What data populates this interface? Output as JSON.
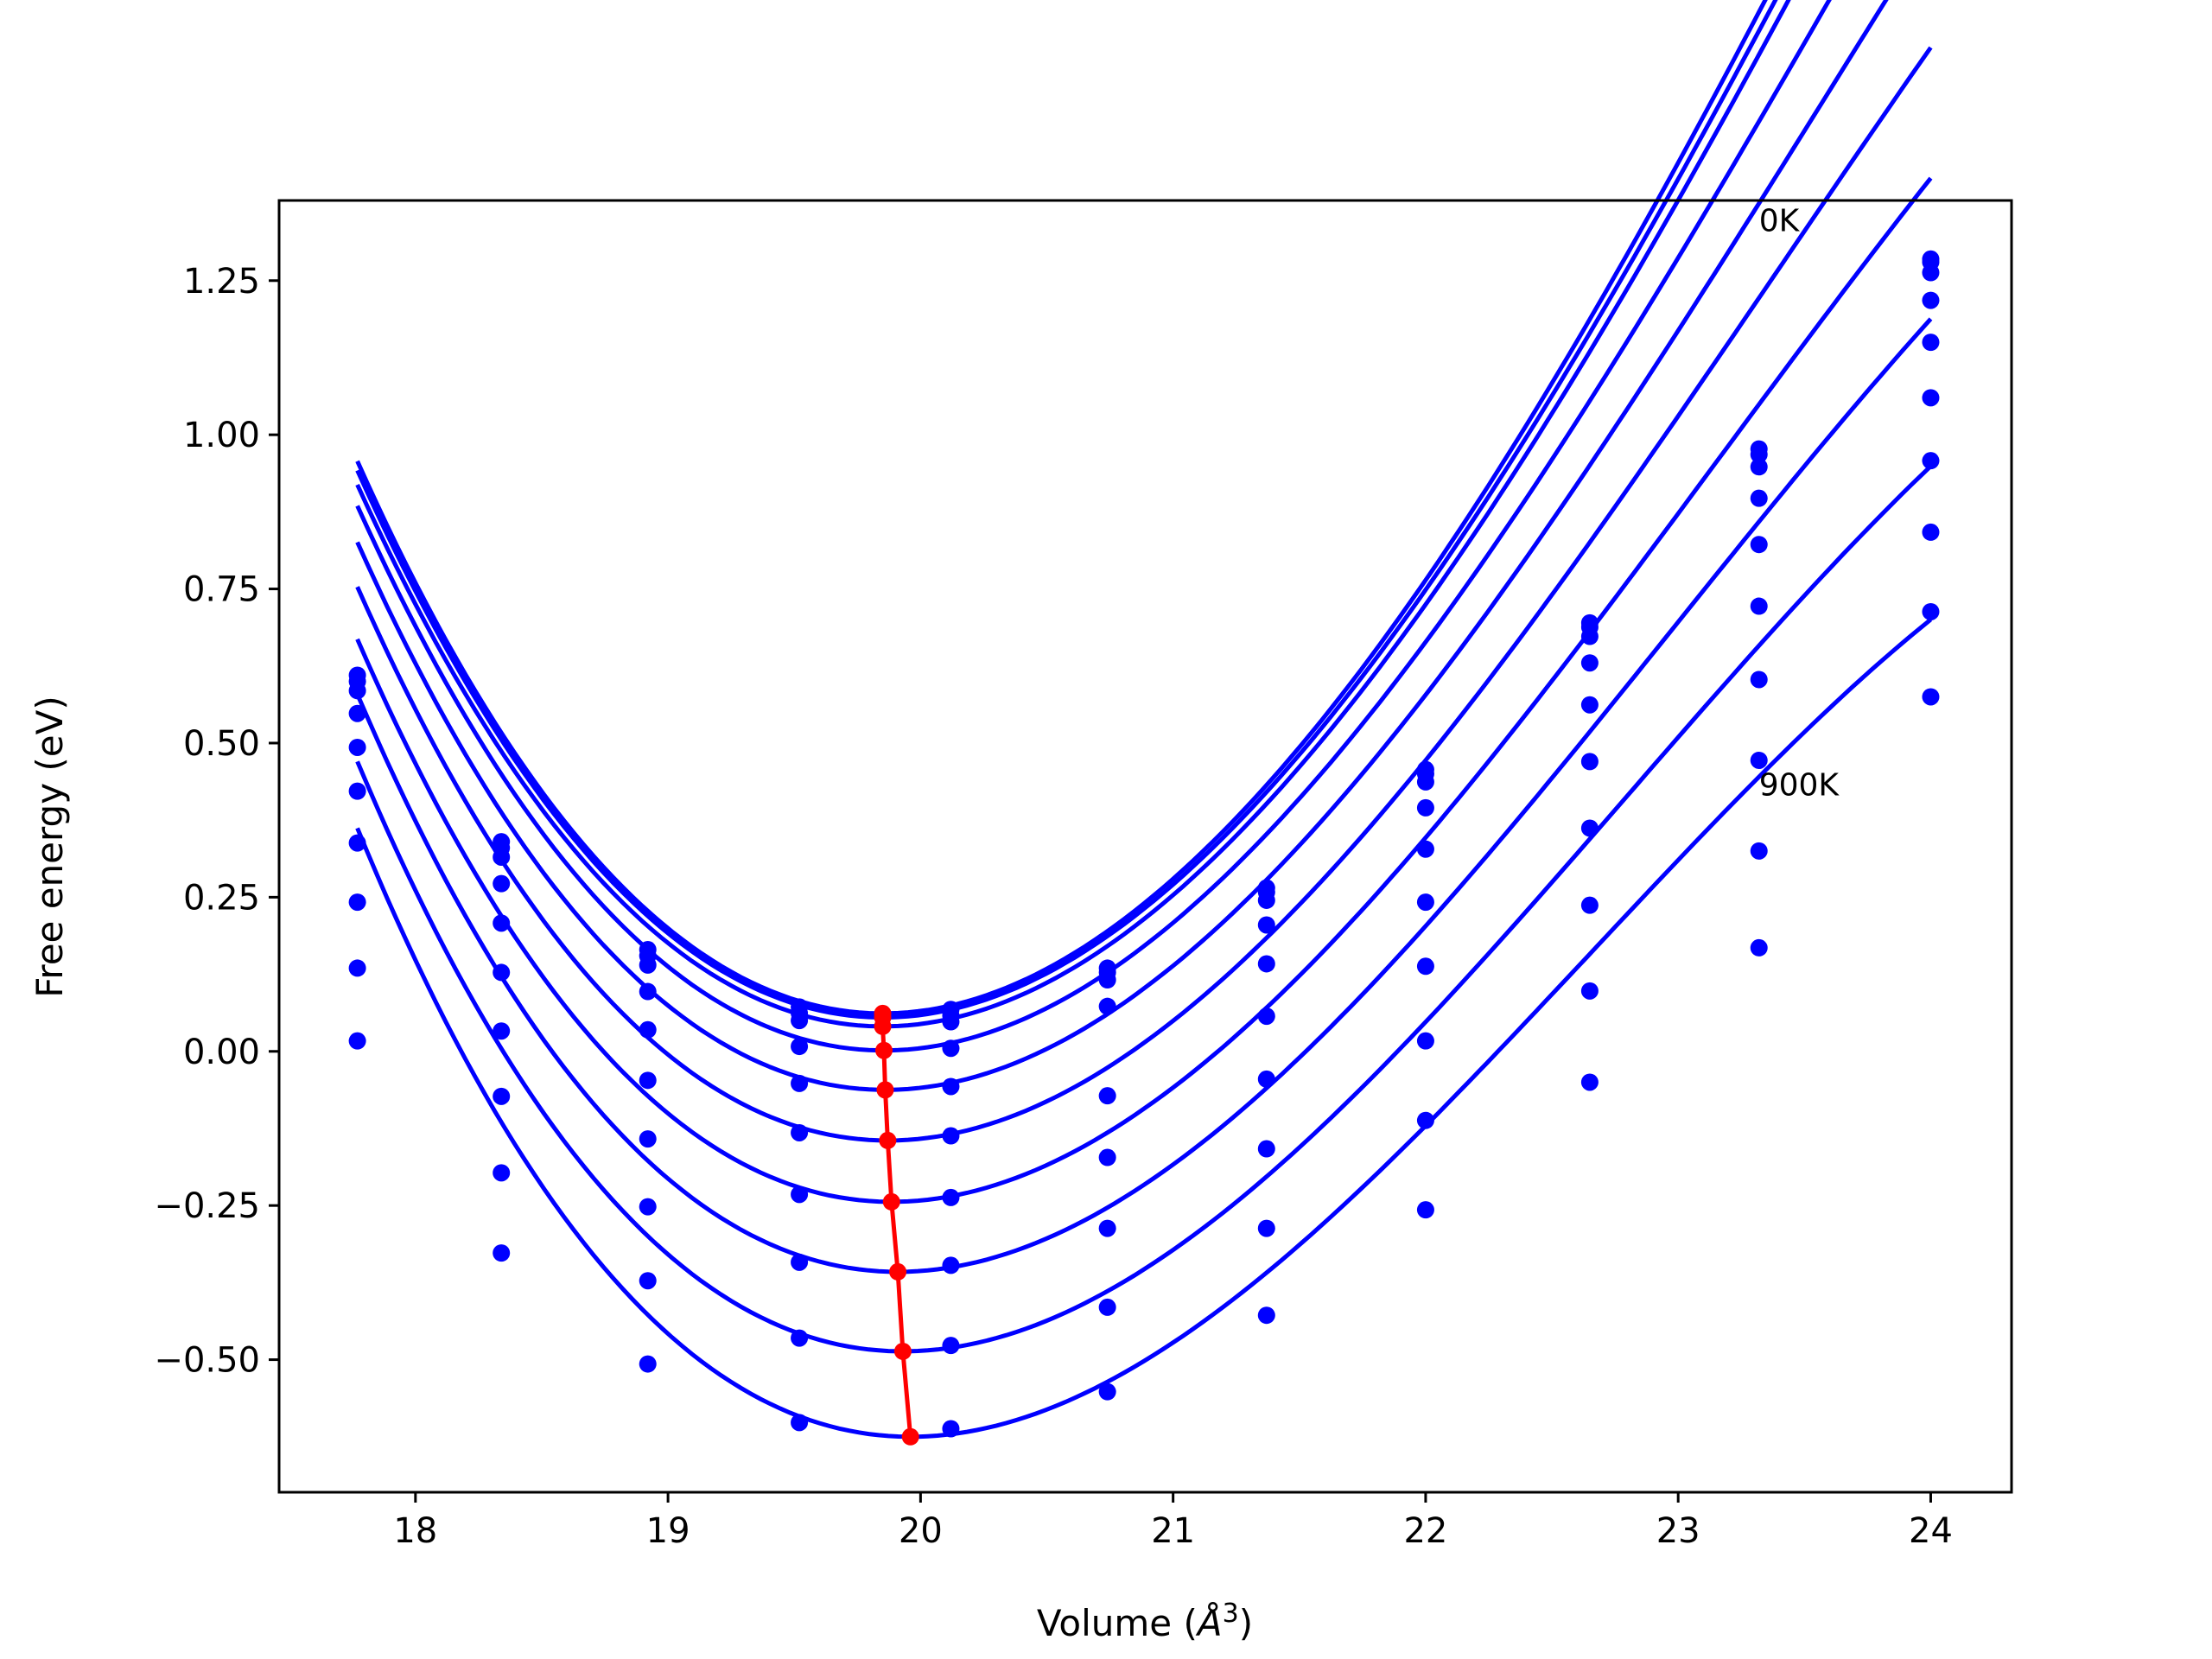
{
  "chart_data": {
    "type": "line",
    "xlabel": "Volume (",
    "xlabel_unit": "Å",
    "xlabel_exp": "3",
    "xlabel_close": ")",
    "ylabel": "Free energy (eV)",
    "xlim": [
      17.46,
      24.32
    ],
    "ylim": [
      -0.715,
      1.38
    ],
    "grid": false,
    "x_ticks": [
      18,
      19,
      20,
      21,
      22,
      23,
      24
    ],
    "x_tick_labels": [
      "18",
      "19",
      "20",
      "21",
      "22",
      "23",
      "24"
    ],
    "y_ticks": [
      1.25,
      1.0,
      0.75,
      0.5,
      0.25,
      0.0,
      -0.25,
      -0.5
    ],
    "y_tick_labels": [
      "1.25",
      "1.00",
      "0.75",
      "0.50",
      "0.25",
      "0.00",
      "−0.25",
      "−0.50"
    ],
    "annotations": [
      {
        "text": "0K",
        "x": 23.32,
        "y": 1.33
      },
      {
        "text": "900K",
        "x": 23.32,
        "y": 0.415
      }
    ],
    "x": [
      17.77,
      18.34,
      18.92,
      19.52,
      20.12,
      20.74,
      21.37,
      22.0,
      22.65,
      23.32,
      24.0
    ],
    "curve_color": "#0000ff",
    "minima_color": "#ff0000",
    "series": [
      {
        "values": [
          0.61,
          0.34,
          0.165,
          0.072,
          0.068,
          0.135,
          0.265,
          0.457,
          0.695,
          0.977,
          1.285
        ],
        "fit": {
          "x0": 19.85,
          "c": 0.0615,
          "a": 0.18,
          "b": -0.013
        }
      },
      {
        "values": [
          0.6,
          0.33,
          0.155,
          0.062,
          0.058,
          0.128,
          0.258,
          0.45,
          0.688,
          0.968,
          1.28
        ],
        "fit": {
          "x0": 19.85,
          "c": 0.055,
          "a": 0.178,
          "b": -0.013
        }
      },
      {
        "values": [
          0.585,
          0.315,
          0.14,
          0.05,
          0.048,
          0.116,
          0.245,
          0.437,
          0.673,
          0.948,
          1.263
        ],
        "fit": {
          "x0": 19.85,
          "c": 0.0405,
          "a": 0.176,
          "b": -0.013
        }
      },
      {
        "values": [
          0.548,
          0.272,
          0.097,
          0.008,
          0.005,
          0.073,
          0.205,
          0.395,
          0.63,
          0.897,
          1.218
        ],
        "fit": {
          "x0": 19.855,
          "c": 0.0015,
          "a": 0.174,
          "b": -0.014
        }
      },
      {
        "values": [
          0.493,
          0.208,
          0.035,
          -0.052,
          -0.057,
          -0.072,
          0.142,
          0.328,
          0.562,
          0.822,
          1.15
        ],
        "fit": {
          "x0": 19.86,
          "c": -0.0625,
          "a": 0.172,
          "b": -0.015
        }
      },
      {
        "values": [
          0.422,
          0.128,
          -0.047,
          -0.132,
          -0.137,
          -0.172,
          0.057,
          0.242,
          0.47,
          0.722,
          1.06
        ],
        "fit": {
          "x0": 19.87,
          "c": -0.1445,
          "a": 0.17,
          "b": -0.016
        }
      },
      {
        "values": [
          0.338,
          0.033,
          -0.142,
          -0.232,
          -0.237,
          -0.287,
          -0.045,
          0.138,
          0.362,
          0.603,
          0.958
        ],
        "fit": {
          "x0": 19.885,
          "c": -0.244,
          "a": 0.168,
          "b": -0.017
        }
      },
      {
        "values": [
          0.242,
          -0.073,
          -0.252,
          -0.342,
          -0.347,
          -0.415,
          -0.158,
          0.017,
          0.237,
          0.472,
          0.842
        ],
        "fit": {
          "x0": 19.91,
          "c": -0.3575,
          "a": 0.166,
          "b": -0.018
        }
      },
      {
        "values": [
          0.135,
          -0.197,
          -0.372,
          -0.465,
          -0.477,
          -0.552,
          -0.287,
          -0.112,
          0.098,
          0.325,
          0.713
        ],
        "fit": {
          "x0": 19.93,
          "c": -0.4865,
          "a": 0.164,
          "b": -0.019
        }
      },
      {
        "values": [
          0.017,
          -0.327,
          -0.507,
          -0.602,
          -0.612,
          null,
          -0.428,
          -0.257,
          -0.05,
          0.168,
          0.575
        ],
        "fit": {
          "x0": 19.96,
          "c": -0.625,
          "a": 0.162,
          "b": -0.02
        }
      }
    ],
    "minima": {
      "x": [
        19.85,
        19.85,
        19.85,
        19.855,
        19.86,
        19.87,
        19.885,
        19.91,
        19.93,
        19.96
      ],
      "y": [
        0.0615,
        0.055,
        0.0405,
        0.0015,
        -0.0625,
        -0.1445,
        -0.244,
        -0.3575,
        -0.4865,
        -0.625
      ]
    }
  }
}
